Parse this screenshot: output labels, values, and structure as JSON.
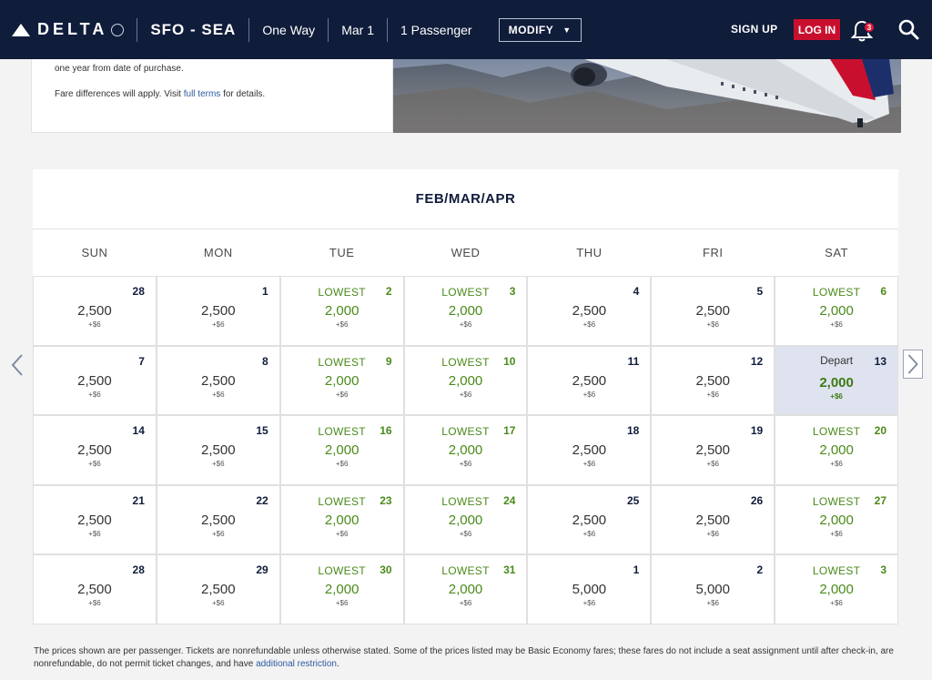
{
  "header": {
    "logo_text": "DELTA",
    "route": "SFO - SEA",
    "trip_type": "One Way",
    "date": "Mar 1",
    "passengers": "1 Passenger",
    "modify_label": "MODIFY",
    "signup_label": "SIGN UP",
    "login_label": "LOG IN",
    "notification_count": "3",
    "icons": [
      "delta-widget-logo",
      "globe-icon",
      "chevron-down-icon",
      "bell-icon",
      "search-icon"
    ]
  },
  "info": {
    "line1": "one year from date of purchase.",
    "line2_prefix": "Fare differences will apply. Visit ",
    "line2_link": "full terms",
    "line2_suffix": " for details."
  },
  "calendar": {
    "title": "FEB/MAR/APR",
    "weekdays": [
      "SUN",
      "MON",
      "TUE",
      "WED",
      "THU",
      "FRI",
      "SAT"
    ],
    "weeks": [
      [
        {
          "day": "28",
          "price": "2,500",
          "fee": "+$6",
          "tag": ""
        },
        {
          "day": "1",
          "price": "2,500",
          "fee": "+$6",
          "tag": ""
        },
        {
          "day": "2",
          "price": "2,000",
          "fee": "+$6",
          "tag": "LOWEST"
        },
        {
          "day": "3",
          "price": "2,000",
          "fee": "+$6",
          "tag": "LOWEST"
        },
        {
          "day": "4",
          "price": "2,500",
          "fee": "+$6",
          "tag": ""
        },
        {
          "day": "5",
          "price": "2,500",
          "fee": "+$6",
          "tag": ""
        },
        {
          "day": "6",
          "price": "2,000",
          "fee": "+$6",
          "tag": "LOWEST"
        }
      ],
      [
        {
          "day": "7",
          "price": "2,500",
          "fee": "+$6",
          "tag": ""
        },
        {
          "day": "8",
          "price": "2,500",
          "fee": "+$6",
          "tag": ""
        },
        {
          "day": "9",
          "price": "2,000",
          "fee": "+$6",
          "tag": "LOWEST"
        },
        {
          "day": "10",
          "price": "2,000",
          "fee": "+$6",
          "tag": "LOWEST"
        },
        {
          "day": "11",
          "price": "2,500",
          "fee": "+$6",
          "tag": ""
        },
        {
          "day": "12",
          "price": "2,500",
          "fee": "+$6",
          "tag": ""
        },
        {
          "day": "13",
          "price": "2,000",
          "fee": "+$6",
          "tag": "Depart",
          "selected": true
        }
      ],
      [
        {
          "day": "14",
          "price": "2,500",
          "fee": "+$6",
          "tag": ""
        },
        {
          "day": "15",
          "price": "2,500",
          "fee": "+$6",
          "tag": ""
        },
        {
          "day": "16",
          "price": "2,000",
          "fee": "+$6",
          "tag": "LOWEST"
        },
        {
          "day": "17",
          "price": "2,000",
          "fee": "+$6",
          "tag": "LOWEST"
        },
        {
          "day": "18",
          "price": "2,500",
          "fee": "+$6",
          "tag": ""
        },
        {
          "day": "19",
          "price": "2,500",
          "fee": "+$6",
          "tag": ""
        },
        {
          "day": "20",
          "price": "2,000",
          "fee": "+$6",
          "tag": "LOWEST"
        }
      ],
      [
        {
          "day": "21",
          "price": "2,500",
          "fee": "+$6",
          "tag": ""
        },
        {
          "day": "22",
          "price": "2,500",
          "fee": "+$6",
          "tag": ""
        },
        {
          "day": "23",
          "price": "2,000",
          "fee": "+$6",
          "tag": "LOWEST"
        },
        {
          "day": "24",
          "price": "2,000",
          "fee": "+$6",
          "tag": "LOWEST"
        },
        {
          "day": "25",
          "price": "2,500",
          "fee": "+$6",
          "tag": ""
        },
        {
          "day": "26",
          "price": "2,500",
          "fee": "+$6",
          "tag": ""
        },
        {
          "day": "27",
          "price": "2,000",
          "fee": "+$6",
          "tag": "LOWEST"
        }
      ],
      [
        {
          "day": "28",
          "price": "2,500",
          "fee": "+$6",
          "tag": ""
        },
        {
          "day": "29",
          "price": "2,500",
          "fee": "+$6",
          "tag": ""
        },
        {
          "day": "30",
          "price": "2,000",
          "fee": "+$6",
          "tag": "LOWEST"
        },
        {
          "day": "31",
          "price": "2,000",
          "fee": "+$6",
          "tag": "LOWEST"
        },
        {
          "day": "1",
          "price": "5,000",
          "fee": "+$6",
          "tag": ""
        },
        {
          "day": "2",
          "price": "5,000",
          "fee": "+$6",
          "tag": ""
        },
        {
          "day": "3",
          "price": "2,000",
          "fee": "+$6",
          "tag": "LOWEST"
        }
      ]
    ],
    "icons": [
      "chevron-left-icon",
      "chevron-right-icon"
    ]
  },
  "footnote": {
    "text": "The prices shown are per passenger. Tickets are nonrefundable unless otherwise stated. Some of the prices listed may be Basic Economy fares; these fares do not include a seat assignment until after check-in, are nonrefundable, do not permit ticket changes, and have ",
    "link": "additional restriction",
    "suffix": "."
  },
  "colors": {
    "nav_bg": "#0f1c3a",
    "login_bg": "#c8102e",
    "lowest_green": "#4a8a1a",
    "selected_bg": "#dfe3f0",
    "link_blue": "#2c5aa0"
  }
}
